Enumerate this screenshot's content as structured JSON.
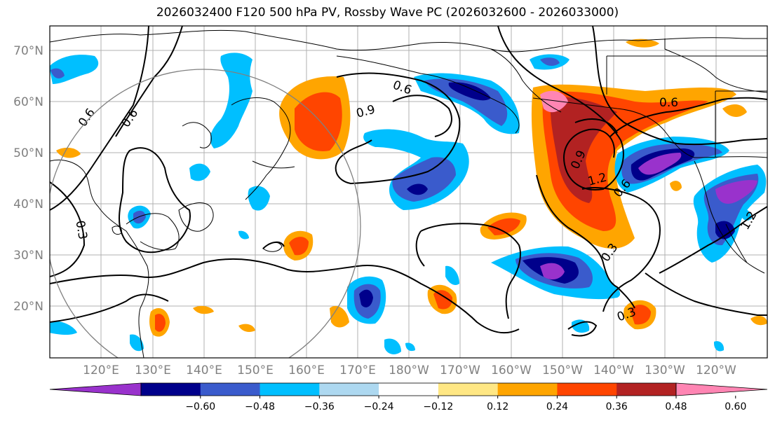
{
  "title": "2026032400 F120 500 hPa PV, Rossby Wave PC (2026032600 - 2026033000)",
  "lat_labels": [
    "70°N",
    "60°N",
    "50°N",
    "40°N",
    "30°N",
    "20°N"
  ],
  "lon_labels": [
    "120°E",
    "130°E",
    "140°E",
    "150°E",
    "160°E",
    "170°E",
    "180°W",
    "170°W",
    "160°W",
    "150°W",
    "140°W",
    "130°W",
    "120°W"
  ],
  "colorbar": {
    "colors": [
      "#9932CC",
      "#00008B",
      "#3A5BCC",
      "#00BFFF",
      "#ADD8F0",
      "#FFFFFF",
      "#FFE784",
      "#FFA500",
      "#FF4500",
      "#B22222",
      "#FF85B3"
    ],
    "tick_labels": [
      "−0.60",
      "−0.48",
      "−0.36",
      "−0.24",
      "−0.12",
      "0.12",
      "0.24",
      "0.36",
      "0.48",
      "0.60"
    ]
  },
  "contour_labels": {
    "l1": "0.6",
    "l2": "0.6",
    "l3": "0.6",
    "l4": "0.9",
    "l5": "0.3",
    "l6": "0.6",
    "l7": "0.9",
    "l8": "1.2",
    "l9": "0.6",
    "l10": "0.3",
    "l11": "0.3",
    "l12": "1.2"
  }
}
